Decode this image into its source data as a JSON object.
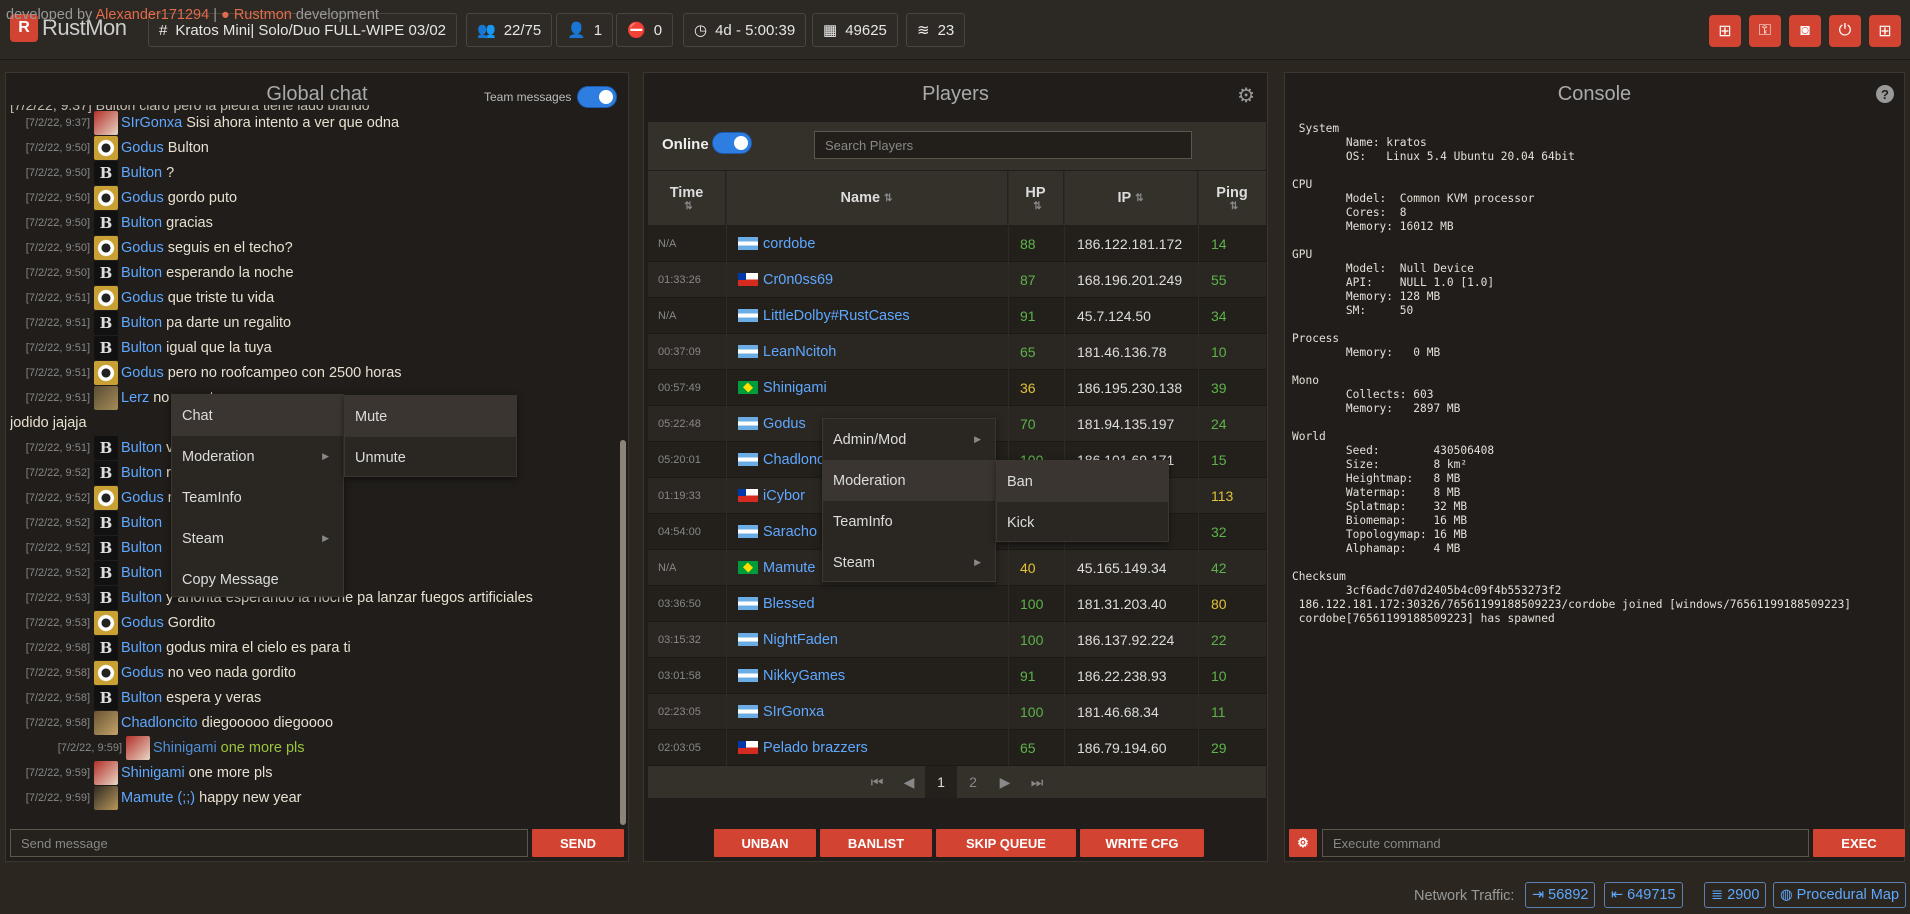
{
  "app": {
    "name": "RustMon"
  },
  "top_chips": [
    {
      "icon": "#",
      "label": "Kratos Mini| Solo/Duo FULL-WIPE 03/02"
    },
    {
      "icon": "users-icon",
      "label": "22/75"
    },
    {
      "icon": "user-clock-icon",
      "label": "1"
    },
    {
      "icon": "user-slash-icon",
      "label": "0"
    },
    {
      "icon": "clock-icon",
      "label": "4d - 5:00:39"
    },
    {
      "icon": "entities-icon",
      "label": "49625"
    },
    {
      "icon": "layers-icon",
      "label": "23"
    }
  ],
  "chat": {
    "title": "Global chat",
    "team_toggle_label": "Team messages",
    "partial_top_text": "[7/2/22, 9:37] Bulton claro pero la piedra tiene lado blando",
    "messages": [
      {
        "time": "[7/2/22, 9:37]",
        "avatar": "s",
        "user": "SIrGonxa",
        "text": "Sisi ahora intento a ver que odna"
      },
      {
        "time": "[7/2/22, 9:50]",
        "avatar": "g",
        "user": "Godus",
        "text": "Bulton"
      },
      {
        "time": "[7/2/22, 9:50]",
        "avatar": "b",
        "user": "Bulton",
        "text": "?"
      },
      {
        "time": "[7/2/22, 9:50]",
        "avatar": "g",
        "user": "Godus",
        "text": "gordo puto"
      },
      {
        "time": "[7/2/22, 9:50]",
        "avatar": "b",
        "user": "Bulton",
        "text": "gracias"
      },
      {
        "time": "[7/2/22, 9:50]",
        "avatar": "g",
        "user": "Godus",
        "text": "seguis en el techo?"
      },
      {
        "time": "[7/2/22, 9:50]",
        "avatar": "b",
        "user": "Bulton",
        "text": "esperando la noche"
      },
      {
        "time": "[7/2/22, 9:51]",
        "avatar": "g",
        "user": "Godus",
        "text": "que triste tu vida"
      },
      {
        "time": "[7/2/22, 9:51]",
        "avatar": "b",
        "user": "Bulton",
        "text": "pa darte un regalito"
      },
      {
        "time": "[7/2/22, 9:51]",
        "avatar": "b",
        "user": "Bulton",
        "text": "igual que la tuya"
      },
      {
        "time": "[7/2/22, 9:51]",
        "avatar": "g",
        "user": "Godus",
        "text": "pero no roofcampeo con 2500 horas"
      },
      {
        "time": "[7/2/22, 9:51]",
        "avatar": "l",
        "user": "Lerz",
        "text": "no                                         uego tas"
      },
      {
        "time": "",
        "avatar": "",
        "user": "",
        "text": "jodido jajaja"
      },
      {
        "time": "[7/2/22, 9:51]",
        "avatar": "b",
        "user": "Bulton",
        "text": "                                           vez"
      },
      {
        "time": "[7/2/22, 9:52]",
        "avatar": "b",
        "user": "Bulton",
        "text": "                                rendida"
      },
      {
        "time": "[7/2/22, 9:52]",
        "avatar": "g",
        "user": "Godus",
        "text": "                                no?"
      },
      {
        "time": "[7/2/22, 9:52]",
        "avatar": "b",
        "user": "Bulton",
        "text": ""
      },
      {
        "time": "[7/2/22, 9:52]",
        "avatar": "b",
        "user": "Bulton",
        "text": ""
      },
      {
        "time": "[7/2/22, 9:52]",
        "avatar": "b",
        "user": "Bulton",
        "text": ""
      },
      {
        "time": "[7/2/22, 9:53]",
        "avatar": "b",
        "user": "Bulton",
        "text": "y ahorita esperando la noche pa lanzar fuegos artificiales"
      },
      {
        "time": "[7/2/22, 9:53]",
        "avatar": "g",
        "user": "Godus",
        "text": "Gordito"
      },
      {
        "time": "[7/2/22, 9:58]",
        "avatar": "b",
        "user": "Bulton",
        "text": "godus mira el cielo es para ti"
      },
      {
        "time": "[7/2/22, 9:58]",
        "avatar": "g",
        "user": "Godus",
        "text": "no veo nada gordito"
      },
      {
        "time": "[7/2/22, 9:58]",
        "avatar": "b",
        "user": "Bulton",
        "text": "espera y veras"
      },
      {
        "time": "[7/2/22, 9:58]",
        "avatar": "c",
        "user": "Chadloncito",
        "text": "diegooooo diegoooo"
      },
      {
        "time": "[7/2/22, 9:59]",
        "avatar": "s",
        "user": "Shinigami",
        "text": "one more pls",
        "team": true
      },
      {
        "time": "[7/2/22, 9:59]",
        "avatar": "s",
        "user": "Shinigami",
        "text": "one more pls"
      },
      {
        "time": "[7/2/22, 9:59]",
        "avatar": "m",
        "user": "Mamute (;;)",
        "text": "happy new year"
      }
    ],
    "send_placeholder": "Send message",
    "send_label": "SEND"
  },
  "chat_menu": {
    "items": [
      "Chat",
      "Moderation",
      "TeamInfo",
      "Steam",
      "Copy Message"
    ],
    "submenu": [
      "Mute",
      "Unmute"
    ]
  },
  "players": {
    "title": "Players",
    "online_label": "Online",
    "search_placeholder": "Search Players",
    "columns": [
      "Time",
      "Name",
      "HP",
      "IP",
      "Ping"
    ],
    "rows": [
      {
        "time": "N/A",
        "flag": "ar",
        "name": "cordobe",
        "hp": "88",
        "ip": "186.122.181.172",
        "ping": "14"
      },
      {
        "time": "01:33:26",
        "flag": "cl",
        "name": "Cr0n0ss69",
        "hp": "87",
        "ip": "168.196.201.249",
        "ping": "55"
      },
      {
        "time": "N/A",
        "flag": "ar",
        "name": "LittleDolby#RustCases",
        "hp": "91",
        "ip": "45.7.124.50",
        "ping": "34"
      },
      {
        "time": "00:37:09",
        "flag": "ar",
        "name": "LeanNcitoh",
        "hp": "65",
        "ip": "181.46.136.78",
        "ping": "10"
      },
      {
        "time": "00:57:49",
        "flag": "br",
        "name": "Shinigami",
        "hp": "36",
        "ip": "186.195.230.138",
        "ping": "39"
      },
      {
        "time": "05:22:48",
        "flag": "ar",
        "name": "Godus",
        "hp": "70",
        "ip": "181.94.135.197",
        "ping": "24"
      },
      {
        "time": "05:20:01",
        "flag": "ar",
        "name": "Chadlonc",
        "hp": "100",
        "ip": "186.101.69.171",
        "ping": "15"
      },
      {
        "time": "01:19:33",
        "flag": "cl",
        "name": "iCybor",
        "hp": "",
        "ip": "2",
        "ping": "113"
      },
      {
        "time": "04:54:00",
        "flag": "ar",
        "name": "Saracho",
        "hp": "",
        "ip": "12",
        "ping": "32"
      },
      {
        "time": "N/A",
        "flag": "br",
        "name": "Mamute",
        "hp": "40",
        "ip": "45.165.149.34",
        "ping": "42"
      },
      {
        "time": "03:36:50",
        "flag": "ar",
        "name": "Blessed",
        "hp": "100",
        "ip": "181.31.203.40",
        "ping": "80"
      },
      {
        "time": "03:15:32",
        "flag": "ar",
        "name": "NightFaden",
        "hp": "100",
        "ip": "186.137.92.224",
        "ping": "22"
      },
      {
        "time": "03:01:58",
        "flag": "ar",
        "name": "NikkyGames",
        "hp": "91",
        "ip": "186.22.238.93",
        "ping": "10"
      },
      {
        "time": "02:23:05",
        "flag": "ar",
        "name": "SIrGonxa",
        "hp": "100",
        "ip": "181.46.68.34",
        "ping": "11"
      },
      {
        "time": "02:03:05",
        "flag": "cl",
        "name": "Pelado brazzers",
        "hp": "65",
        "ip": "186.79.194.60",
        "ping": "29"
      }
    ],
    "pages": [
      "1",
      "2"
    ],
    "actions": [
      "UNBAN",
      "BANLIST",
      "SKIP QUEUE",
      "WRITE CFG"
    ]
  },
  "player_menu": {
    "items": [
      "Admin/Mod",
      "Moderation",
      "TeamInfo",
      "Steam"
    ],
    "submenu": [
      "Ban",
      "Kick"
    ]
  },
  "console": {
    "title": "Console",
    "text": " System\n        Name: kratos\n        OS:   Linux 5.4 Ubuntu 20.04 64bit\n\nCPU\n        Model:  Common KVM processor\n        Cores:  8\n        Memory: 16012 MB\n\nGPU\n        Model:  Null Device\n        API:    NULL 1.0 [1.0]\n        Memory: 128 MB\n        SM:     50\n\nProcess\n        Memory:   0 MB\n\nMono\n        Collects: 603\n        Memory:   2897 MB\n\nWorld\n        Seed:        430506408\n        Size:        8 km²\n        Heightmap:   8 MB\n        Watermap:    8 MB\n        Splatmap:    32 MB\n        Biomemap:    16 MB\n        Topologymap: 16 MB\n        Alphamap:    4 MB\n\nChecksum\n        3cf6adc7d07d2405b4c09f4b553273f2\n 186.122.181.172:30326/76561199188509223/cordobe joined [windows/76561199188509223]\n cordobe[76561199188509223] has spawned",
    "exec_placeholder": "Execute command",
    "exec_label": "EXEC"
  },
  "footer": {
    "developed_by": "developed by",
    "author": "Alexander171294",
    "sep": "|",
    "project": "Rustmon",
    "dev_suffix": "development",
    "network_label": "Network Traffic:",
    "in": "56892",
    "out": "649715",
    "db": "2900",
    "map": "Procedural Map"
  },
  "colors": {
    "accent": "#d24431",
    "link": "#5fa8ff",
    "toggle": "#2d7ee0"
  }
}
